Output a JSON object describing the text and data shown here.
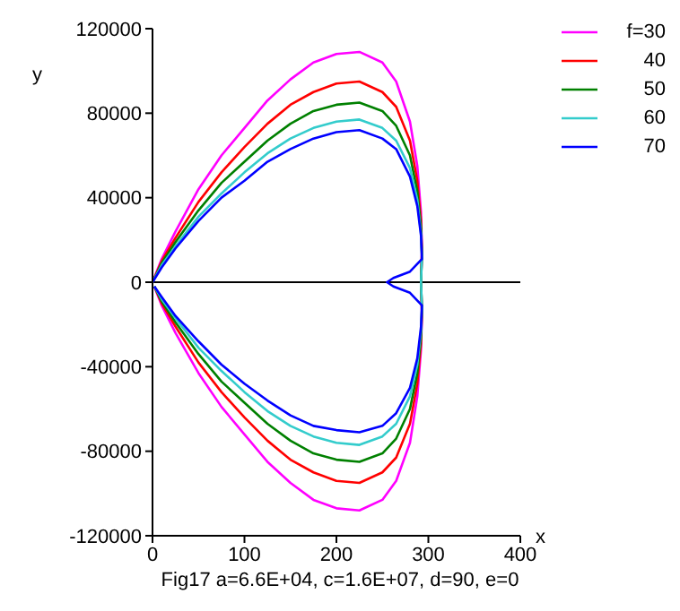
{
  "chart_data": {
    "type": "line",
    "xlabel": "x",
    "ylabel": "y",
    "annotations": [
      "Fig17 a=6.6E+04, c=1.6E+07, d=90, e=0"
    ],
    "xlim": [
      0,
      400
    ],
    "xticks": [
      0,
      100,
      200,
      300,
      400
    ],
    "ylim": [
      -120000,
      120000
    ],
    "yticks": [
      -120000,
      -80000,
      -40000,
      0,
      40000,
      80000,
      120000
    ],
    "grid": false,
    "ref_lines": [
      {
        "axis": "y",
        "value": 0
      }
    ],
    "legend": "top right",
    "marker": "none",
    "line_style": "solid",
    "series": [
      {
        "name": "f=30",
        "color": "#ff00ff",
        "x": [
          0,
          10,
          25,
          50,
          75,
          100,
          125,
          150,
          175,
          200,
          225,
          250,
          265,
          280,
          288,
          292,
          293,
          292,
          293,
          292,
          288,
          280,
          265,
          250,
          225,
          200,
          175,
          150,
          125,
          100,
          75,
          50,
          25,
          10,
          2
        ],
        "values": [
          0,
          11000,
          24000,
          44000,
          60000,
          73000,
          86000,
          96000,
          104000,
          108000,
          109000,
          104000,
          95000,
          76000,
          55000,
          33000,
          16000,
          0,
          -16000,
          -32000,
          -54000,
          -76000,
          -94000,
          -103000,
          -108000,
          -107000,
          -103000,
          -95000,
          -85000,
          -72000,
          -59000,
          -43000,
          -24000,
          -11000,
          -2000
        ]
      },
      {
        "name": "40",
        "color": "#ff0000",
        "x": [
          0,
          10,
          25,
          50,
          75,
          100,
          125,
          150,
          175,
          200,
          225,
          250,
          265,
          280,
          288,
          292,
          293,
          292,
          293,
          292,
          288,
          280,
          265,
          250,
          225,
          200,
          175,
          150,
          125,
          100,
          75,
          50,
          25,
          10,
          2
        ],
        "values": [
          0,
          10000,
          21000,
          38000,
          52000,
          64000,
          75000,
          84000,
          90000,
          94000,
          95000,
          90000,
          83000,
          67000,
          48000,
          29000,
          14000,
          0,
          -14000,
          -29000,
          -48000,
          -67000,
          -83000,
          -90000,
          -95000,
          -94000,
          -90000,
          -84000,
          -75000,
          -64000,
          -52000,
          -38000,
          -21000,
          -10000,
          -2000
        ]
      },
      {
        "name": "50",
        "color": "#008000",
        "x": [
          0,
          10,
          25,
          50,
          75,
          100,
          125,
          150,
          175,
          200,
          225,
          250,
          265,
          280,
          288,
          292,
          293,
          292,
          293,
          292,
          288,
          280,
          265,
          250,
          225,
          200,
          175,
          150,
          125,
          100,
          75,
          50,
          25,
          10,
          2
        ],
        "values": [
          0,
          9000,
          19000,
          34000,
          47000,
          57000,
          67000,
          75000,
          81000,
          84000,
          85000,
          81000,
          74000,
          60000,
          43000,
          26000,
          13000,
          0,
          -13000,
          -26000,
          -43000,
          -60000,
          -74000,
          -81000,
          -85000,
          -84000,
          -81000,
          -75000,
          -67000,
          -57000,
          -47000,
          -34000,
          -19000,
          -9000,
          -2000
        ]
      },
      {
        "name": "60",
        "color": "#33cccc",
        "x": [
          0,
          10,
          25,
          50,
          75,
          100,
          125,
          150,
          175,
          200,
          225,
          250,
          265,
          280,
          288,
          292,
          293,
          292,
          293,
          292,
          288,
          280,
          265,
          250,
          225,
          200,
          175,
          150,
          125,
          100,
          75,
          50,
          25,
          10,
          2
        ],
        "values": [
          0,
          8000,
          17000,
          31000,
          42000,
          52000,
          61000,
          68000,
          73000,
          76000,
          77000,
          73000,
          67000,
          54000,
          39000,
          23000,
          12000,
          0,
          -12000,
          -23000,
          -39000,
          -54000,
          -67000,
          -73000,
          -77000,
          -76000,
          -73000,
          -68000,
          -61000,
          -52000,
          -42000,
          -31000,
          -17000,
          -8000,
          -2000
        ]
      },
      {
        "name": "70",
        "color": "#0000ff",
        "x": [
          0,
          10,
          25,
          50,
          75,
          100,
          125,
          150,
          175,
          200,
          225,
          250,
          265,
          280,
          288,
          292,
          293,
          280,
          262,
          255,
          262,
          280,
          293,
          292,
          288,
          280,
          265,
          250,
          225,
          200,
          175,
          150,
          125,
          100,
          75,
          50,
          25,
          10,
          2
        ],
        "values": [
          0,
          7000,
          16000,
          29000,
          40000,
          48000,
          57000,
          63000,
          68000,
          71000,
          72000,
          68000,
          63000,
          50000,
          36000,
          22000,
          11000,
          5000,
          2000,
          0,
          -2000,
          -5000,
          -11000,
          -21000,
          -36000,
          -50000,
          -62000,
          -68000,
          -71000,
          -70000,
          -68000,
          -63000,
          -56000,
          -48000,
          -39000,
          -28000,
          -16000,
          -7000,
          -2000
        ]
      }
    ]
  }
}
